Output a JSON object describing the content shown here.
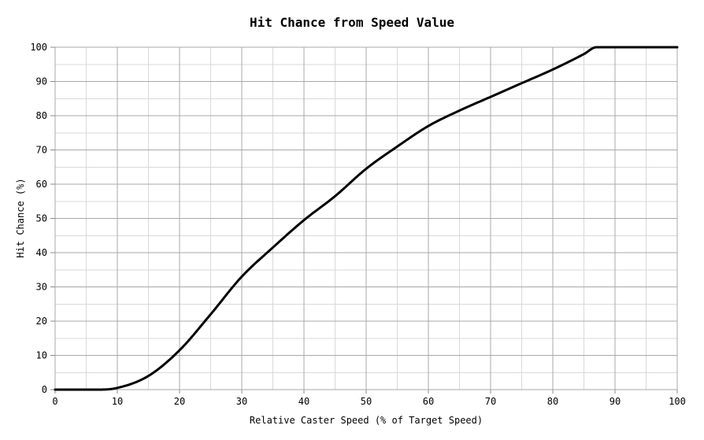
{
  "chart_data": {
    "type": "line",
    "title": "Hit Chance from Speed Value",
    "xlabel": "Relative Caster Speed (% of Target Speed)",
    "ylabel": "Hit Chance (%)",
    "xlim": [
      0,
      100
    ],
    "ylim": [
      0,
      100
    ],
    "x_ticks": [
      0,
      10,
      20,
      30,
      40,
      50,
      60,
      70,
      80,
      90,
      100
    ],
    "y_ticks": [
      0,
      10,
      20,
      30,
      40,
      50,
      60,
      70,
      80,
      90,
      100
    ],
    "minor_step": 5,
    "grid": true,
    "legend": false,
    "series": [
      {
        "name": "hit-chance-curve",
        "color": "#000000",
        "points": [
          [
            0,
            0
          ],
          [
            5,
            0
          ],
          [
            7,
            0
          ],
          [
            10,
            0.5
          ],
          [
            15,
            4
          ],
          [
            20,
            11.5
          ],
          [
            25,
            22
          ],
          [
            30,
            33
          ],
          [
            35,
            41.5
          ],
          [
            40,
            49.5
          ],
          [
            45,
            56.5
          ],
          [
            50,
            64.5
          ],
          [
            55,
            71
          ],
          [
            60,
            77
          ],
          [
            65,
            81.5
          ],
          [
            70,
            85.5
          ],
          [
            75,
            89.5
          ],
          [
            80,
            93.5
          ],
          [
            85,
            98
          ],
          [
            87,
            100
          ],
          [
            90,
            100
          ],
          [
            95,
            100
          ],
          [
            100,
            100
          ]
        ]
      }
    ],
    "colors": {
      "background": "#ffffff",
      "major_grid": "#a9a9a9",
      "minor_grid": "#d9d9d9",
      "tick": "#888888",
      "curve": "#000000",
      "text": "#000000"
    }
  }
}
